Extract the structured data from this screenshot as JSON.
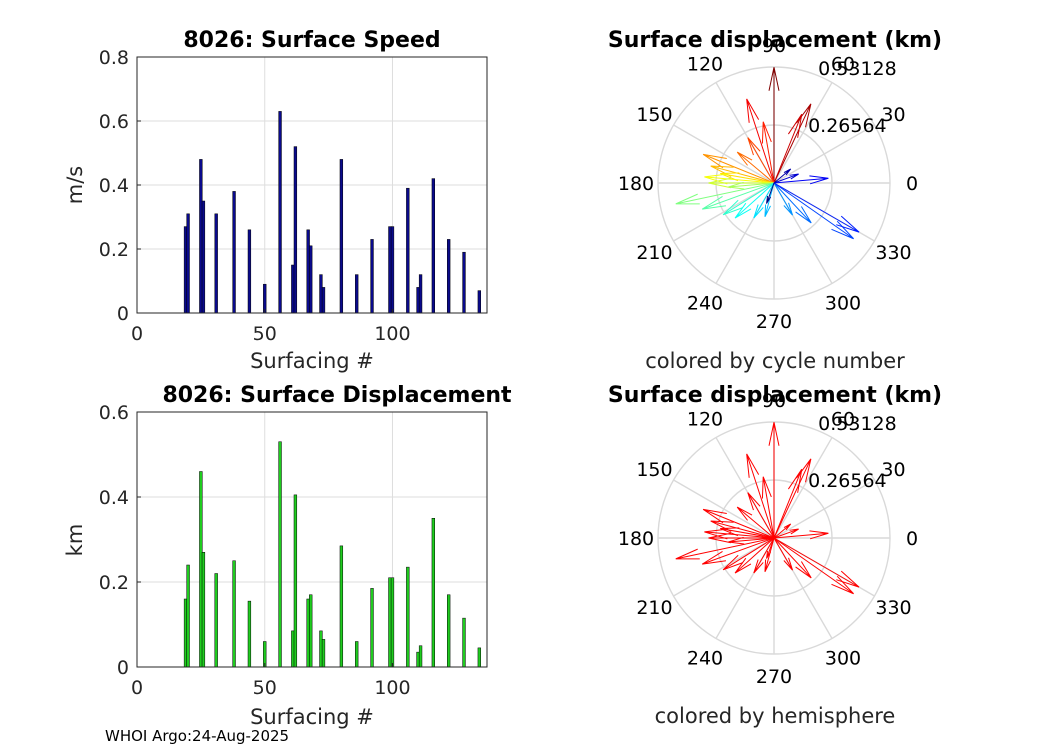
{
  "footer": "WHOI Argo:24-Aug-2025",
  "chart_data": [
    {
      "type": "bar",
      "title": "8026: Surface Speed",
      "xlabel": "Surfacing #",
      "ylabel": "m/s",
      "xlim": [
        0,
        137
      ],
      "ylim": [
        0,
        0.8
      ],
      "xticks": [
        "0",
        "50",
        "100"
      ],
      "yticks": [
        "0",
        "0.2",
        "0.4",
        "0.6",
        "0.8"
      ],
      "bar_color": "#0a0a8c",
      "x": [
        19,
        20,
        25,
        26,
        31,
        38,
        44,
        50,
        56,
        61,
        62,
        67,
        68,
        72,
        73,
        80,
        86,
        92,
        99,
        100,
        106,
        110,
        111,
        116,
        122,
        128,
        134
      ],
      "values": [
        0.27,
        0.31,
        0.48,
        0.35,
        0.31,
        0.38,
        0.26,
        0.09,
        0.63,
        0.15,
        0.52,
        0.26,
        0.21,
        0.12,
        0.08,
        0.48,
        0.12,
        0.23,
        0.27,
        0.27,
        0.39,
        0.08,
        0.12,
        0.42,
        0.23,
        0.19,
        0.07
      ]
    },
    {
      "type": "bar",
      "title": "8026: Surface Displacement",
      "xlabel": "Surfacing #",
      "ylabel": "km",
      "xlim": [
        0,
        137
      ],
      "ylim": [
        0,
        0.6
      ],
      "xticks": [
        "0",
        "50",
        "100"
      ],
      "yticks": [
        "0",
        "0.2",
        "0.4",
        "0.6"
      ],
      "bar_color": "#1fcc1f",
      "x": [
        19,
        20,
        25,
        26,
        31,
        38,
        44,
        50,
        56,
        61,
        62,
        67,
        68,
        72,
        73,
        80,
        86,
        92,
        99,
        100,
        106,
        110,
        111,
        116,
        122,
        128,
        134
      ],
      "values": [
        0.16,
        0.24,
        0.46,
        0.27,
        0.22,
        0.25,
        0.155,
        0.06,
        0.53,
        0.085,
        0.405,
        0.16,
        0.17,
        0.085,
        0.065,
        0.285,
        0.06,
        0.185,
        0.21,
        0.21,
        0.235,
        0.035,
        0.05,
        0.35,
        0.17,
        0.115,
        0.045
      ]
    },
    {
      "type": "polar-compass",
      "title": "Surface displacement (km)",
      "caption": "colored by cycle number",
      "rmax": 0.53128,
      "rticks": [
        "0.26564",
        "0.53128"
      ],
      "angle_ticks": [
        "0",
        "30",
        "60",
        "90",
        "120",
        "150",
        "180",
        "210",
        "240",
        "270",
        "300",
        "330"
      ],
      "color_mode": "cycle",
      "vectors": [
        {
          "deg": 90,
          "r": 0.53
        },
        {
          "deg": 65,
          "r": 0.4
        },
        {
          "deg": 68,
          "r": 0.34
        },
        {
          "deg": 108,
          "r": 0.405
        },
        {
          "deg": 100,
          "r": 0.285
        },
        {
          "deg": 120,
          "r": 0.24
        },
        {
          "deg": 140,
          "r": 0.22
        },
        {
          "deg": 158,
          "r": 0.35
        },
        {
          "deg": 165,
          "r": 0.3
        },
        {
          "deg": 170,
          "r": 0.25
        },
        {
          "deg": 175,
          "r": 0.32
        },
        {
          "deg": 180,
          "r": 0.3
        },
        {
          "deg": 185,
          "r": 0.21
        },
        {
          "deg": 192,
          "r": 0.46
        },
        {
          "deg": 200,
          "r": 0.35
        },
        {
          "deg": 212,
          "r": 0.275
        },
        {
          "deg": 222,
          "r": 0.24
        },
        {
          "deg": 240,
          "r": 0.185
        },
        {
          "deg": 255,
          "r": 0.16
        },
        {
          "deg": 300,
          "r": 0.17
        },
        {
          "deg": 313,
          "r": 0.25
        },
        {
          "deg": 325,
          "r": 0.445
        },
        {
          "deg": 330,
          "r": 0.45
        },
        {
          "deg": 5,
          "r": 0.25
        },
        {
          "deg": 20,
          "r": 0.12
        },
        {
          "deg": 40,
          "r": 0.1
        },
        {
          "deg": 250,
          "r": 0.1
        }
      ]
    },
    {
      "type": "polar-compass",
      "title": "Surface displacement (km)",
      "caption": "colored by hemisphere",
      "rmax": 0.53128,
      "rticks": [
        "0.26564",
        "0.53128"
      ],
      "angle_ticks": [
        "0",
        "30",
        "60",
        "90",
        "120",
        "150",
        "180",
        "210",
        "240",
        "270",
        "300",
        "330"
      ],
      "color_mode": "hemisphere",
      "hemisphere_color": "#ff0000",
      "vectors": [
        {
          "deg": 90,
          "r": 0.53
        },
        {
          "deg": 65,
          "r": 0.4
        },
        {
          "deg": 68,
          "r": 0.34
        },
        {
          "deg": 108,
          "r": 0.405
        },
        {
          "deg": 100,
          "r": 0.285
        },
        {
          "deg": 120,
          "r": 0.24
        },
        {
          "deg": 140,
          "r": 0.22
        },
        {
          "deg": 158,
          "r": 0.35
        },
        {
          "deg": 165,
          "r": 0.3
        },
        {
          "deg": 170,
          "r": 0.25
        },
        {
          "deg": 175,
          "r": 0.32
        },
        {
          "deg": 180,
          "r": 0.3
        },
        {
          "deg": 185,
          "r": 0.21
        },
        {
          "deg": 192,
          "r": 0.46
        },
        {
          "deg": 200,
          "r": 0.35
        },
        {
          "deg": 212,
          "r": 0.275
        },
        {
          "deg": 222,
          "r": 0.24
        },
        {
          "deg": 240,
          "r": 0.185
        },
        {
          "deg": 255,
          "r": 0.16
        },
        {
          "deg": 300,
          "r": 0.17
        },
        {
          "deg": 313,
          "r": 0.25
        },
        {
          "deg": 325,
          "r": 0.445
        },
        {
          "deg": 330,
          "r": 0.45
        },
        {
          "deg": 5,
          "r": 0.25
        },
        {
          "deg": 20,
          "r": 0.12
        },
        {
          "deg": 40,
          "r": 0.1
        },
        {
          "deg": 250,
          "r": 0.1
        }
      ]
    }
  ]
}
